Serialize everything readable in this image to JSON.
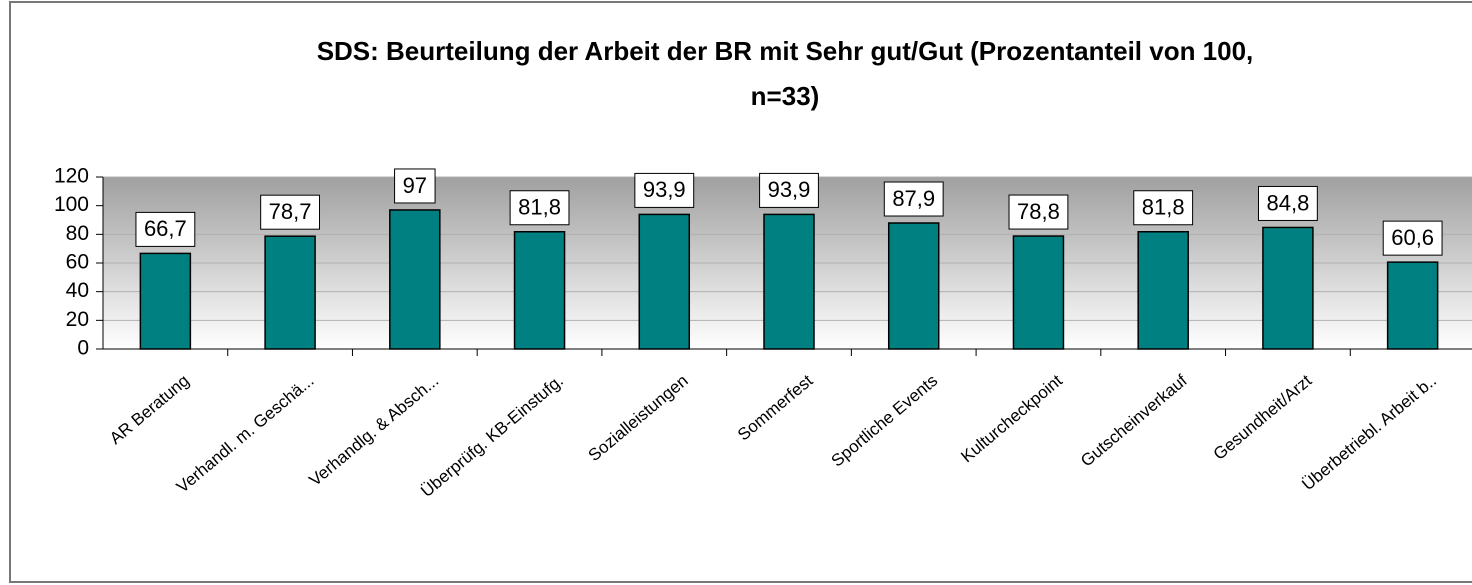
{
  "chart_data": {
    "type": "bar",
    "title": [
      "SDS: Beurteilung der Arbeit der BR mit Sehr gut/Gut (Prozentanteil von 100,",
      "n=33)"
    ],
    "categories": [
      "AR Beratung",
      "Verhandl. m. Geschä...",
      "Verhandlg. & Absch...",
      "Überprüfg. KB-Einstufg.",
      "Sozialleistungen",
      "Sommerfest",
      "Sportliche Events",
      "Kulturcheckpoint",
      "Gutscheinverkauf",
      "Gesundheit/Arzt",
      "Überbetriebl. Arbeit b.."
    ],
    "values": [
      66.7,
      78.7,
      97,
      81.8,
      93.9,
      93.9,
      87.9,
      78.8,
      81.8,
      84.8,
      60.6
    ],
    "value_labels": [
      "66,7",
      "78,7",
      "97",
      "81,8",
      "93,9",
      "93,9",
      "87,9",
      "78,8",
      "81,8",
      "84,8",
      "60,6"
    ],
    "color": "#008080",
    "ylim": [
      0,
      120
    ],
    "yticks": [
      0,
      20,
      40,
      60,
      80,
      100,
      120
    ],
    "grid": true
  }
}
